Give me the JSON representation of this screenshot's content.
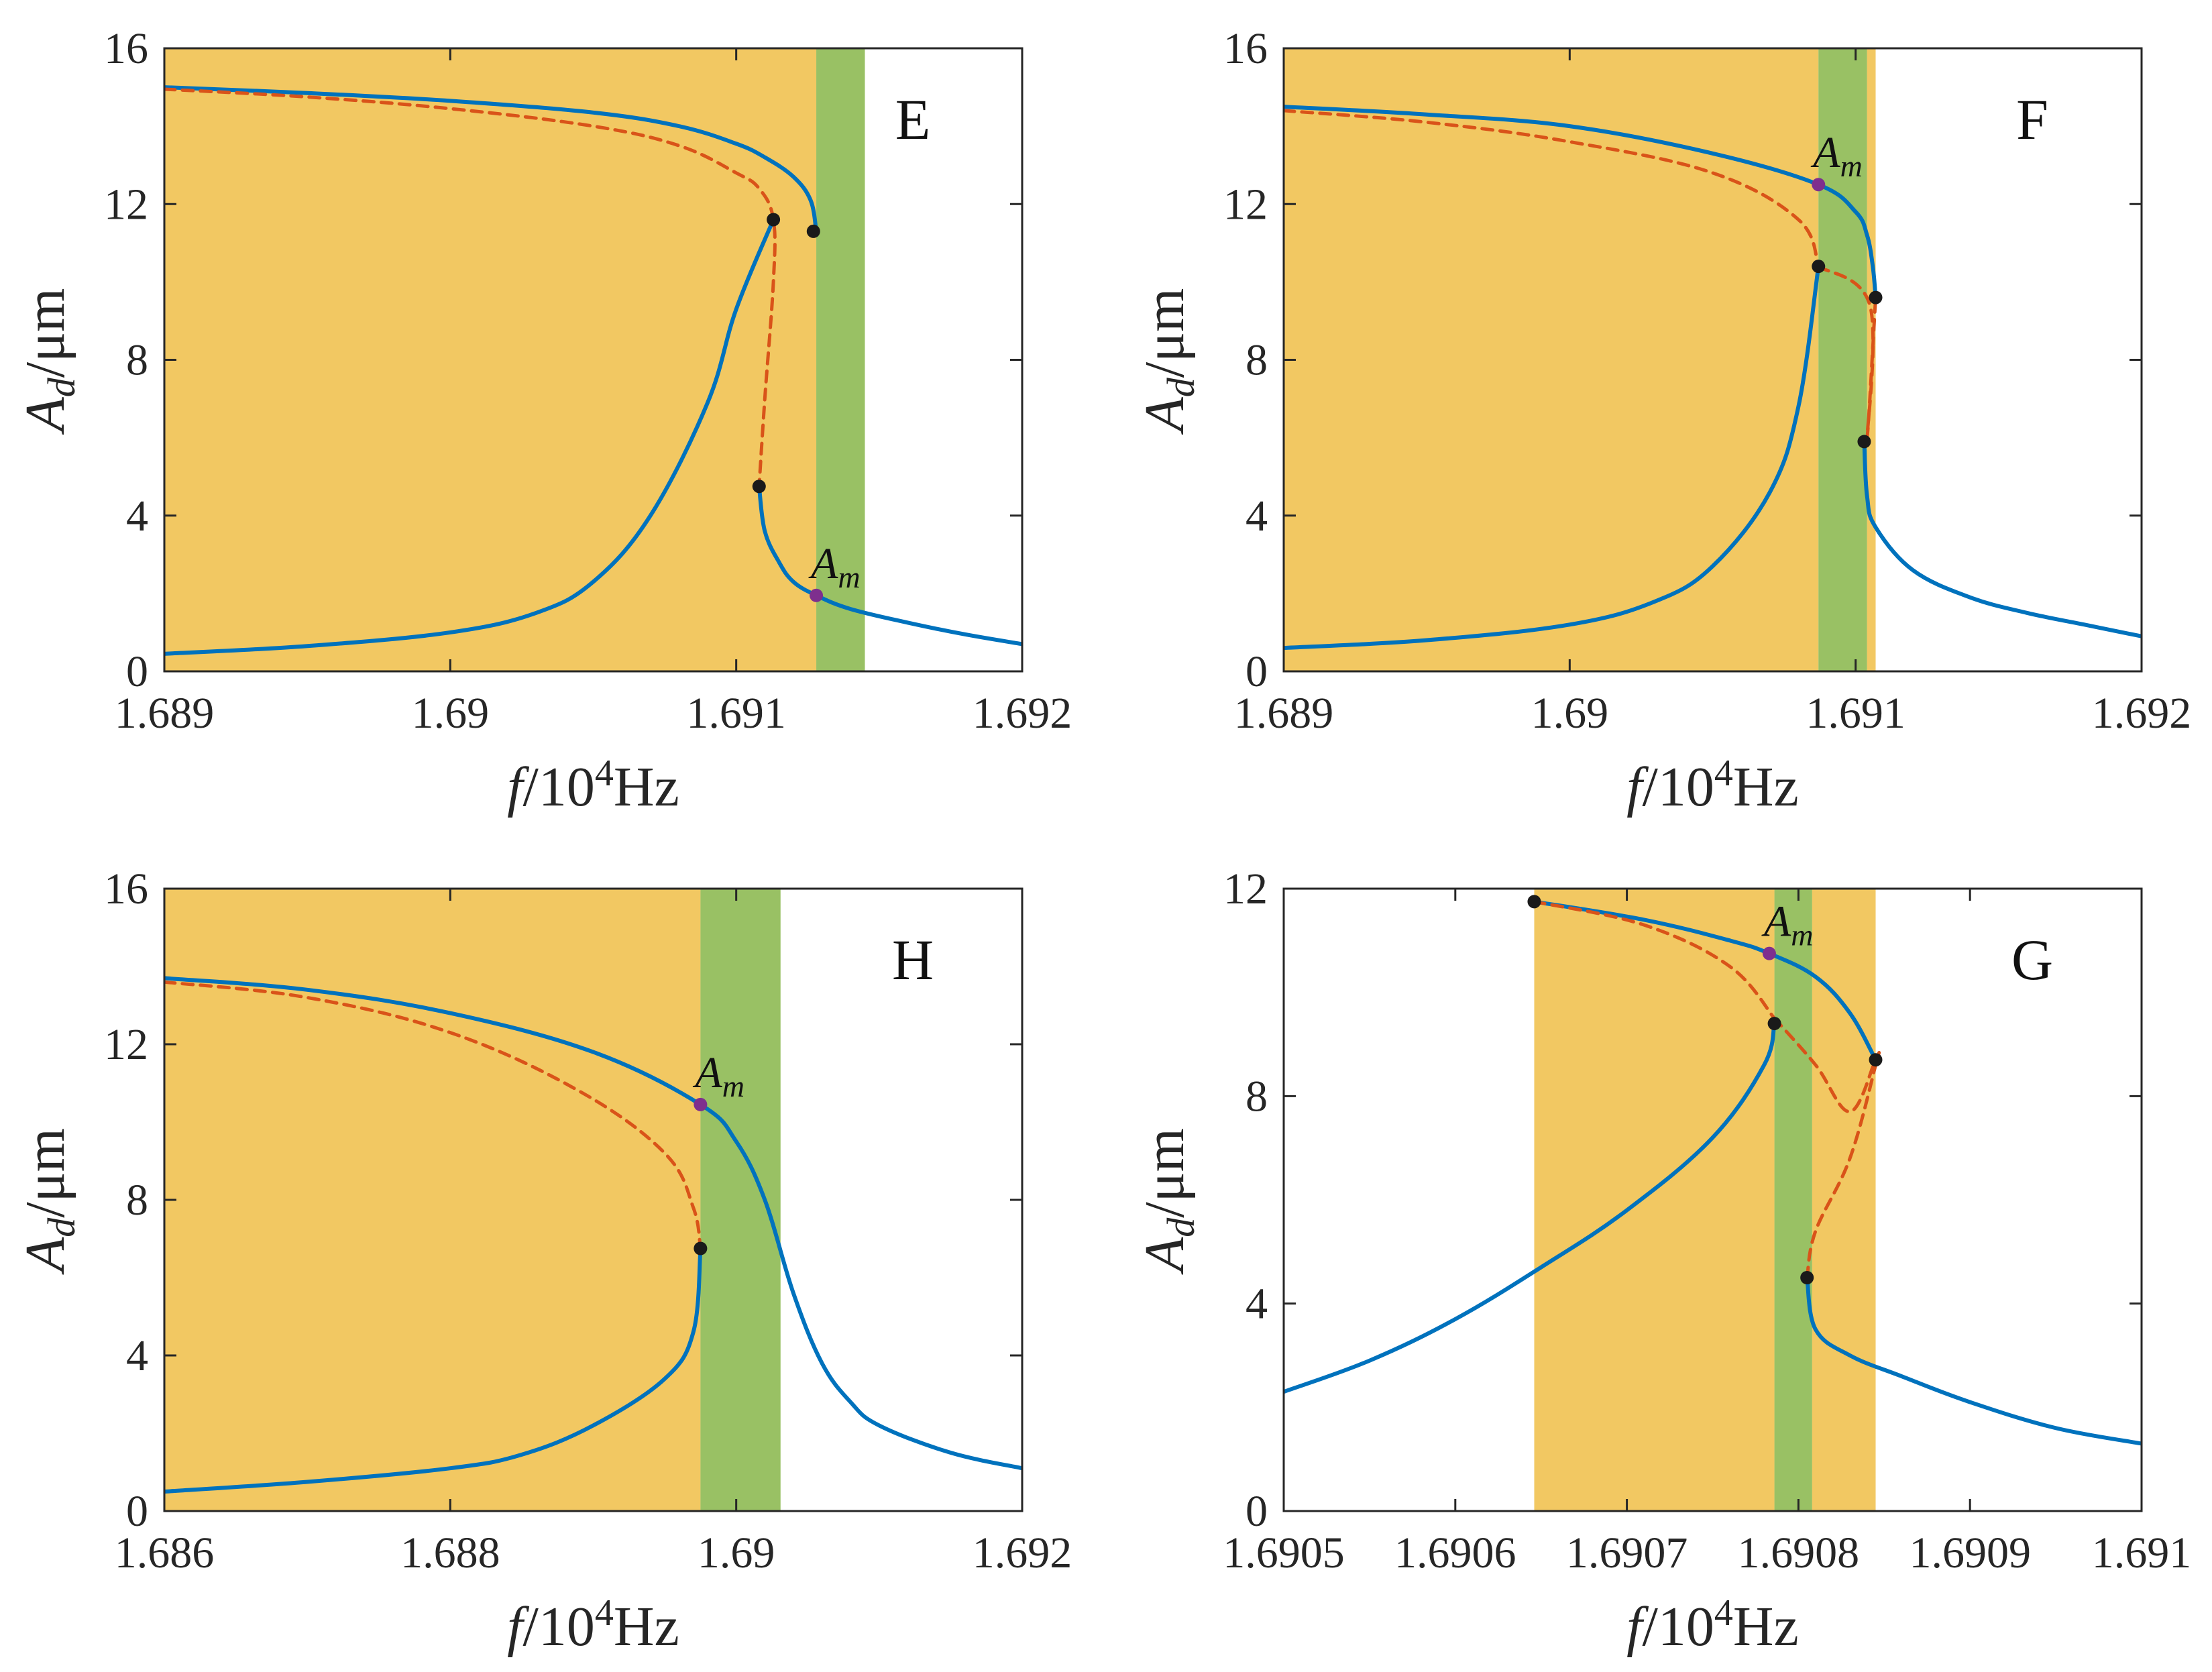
{
  "figure": {
    "axis_label_x_italic": "f",
    "axis_label_x_rest": "/10",
    "axis_label_x_exp": "4",
    "axis_label_x_unit": "Hz",
    "axis_label_y_main": "A",
    "axis_label_y_sub": "d",
    "axis_label_y_unit": "/μm",
    "marker_label_main": "A",
    "marker_label_sub": "m"
  },
  "colors": {
    "stable_curve": "#0072BD",
    "unstable_curve": "#D95319",
    "bifurcation_point": "#1a1a1a",
    "marker_point": "#7E2F8E",
    "orange_region": "#EDB120",
    "green_region": "#77AC30"
  },
  "chart_data": [
    {
      "type": "line",
      "panel_label": "E",
      "xlim": [
        1.689,
        1.692
      ],
      "ylim": [
        0,
        16
      ],
      "xticks": [
        1.689,
        1.69,
        1.691,
        1.692
      ],
      "xtick_labels": [
        "1.689",
        "1.69",
        "1.691",
        "1.692"
      ],
      "yticks": [
        0,
        4,
        8,
        12,
        16
      ],
      "ytick_labels": [
        "0",
        "4",
        "8",
        "12",
        "16"
      ],
      "regions": [
        {
          "name": "orange",
          "x": [
            1.689,
            1.69128
          ]
        },
        {
          "name": "green",
          "x": [
            1.69128,
            1.69145
          ]
        }
      ],
      "series": [
        {
          "name": "stable-upper",
          "style": "solid",
          "x": [
            1.689,
            1.6895,
            1.69,
            1.6905,
            1.6908,
            1.691,
            1.6911,
            1.6912,
            1.69126,
            1.69128
          ],
          "y": [
            15.0,
            14.85,
            14.65,
            14.35,
            14.0,
            13.55,
            13.2,
            12.7,
            12.1,
            11.3
          ]
        },
        {
          "name": "stable-lower",
          "style": "solid",
          "x": [
            1.689,
            1.6895,
            1.69,
            1.6903,
            1.6905,
            1.6907,
            1.6909,
            1.691,
            1.69113
          ],
          "y": [
            0.45,
            0.65,
            1.0,
            1.5,
            2.3,
            4.0,
            6.9,
            9.3,
            11.6
          ]
        },
        {
          "name": "stable-right",
          "style": "solid",
          "x": [
            1.69108,
            1.6911,
            1.69115,
            1.6912,
            1.69128,
            1.6914,
            1.6916,
            1.6918,
            1.692
          ],
          "y": [
            4.75,
            3.6,
            2.8,
            2.3,
            1.95,
            1.6,
            1.25,
            0.95,
            0.7
          ]
        },
        {
          "name": "unstable",
          "style": "dashed",
          "x": [
            1.689,
            1.6895,
            1.69,
            1.6905,
            1.6908,
            1.691,
            1.69108,
            1.69113,
            1.69113,
            1.6911,
            1.69108
          ],
          "y": [
            14.95,
            14.75,
            14.45,
            14.0,
            13.5,
            12.8,
            12.4,
            11.6,
            10.0,
            7.0,
            4.75
          ]
        }
      ],
      "points": [
        {
          "type": "bifurcation",
          "x": 1.69113,
          "y": 11.6
        },
        {
          "type": "bifurcation",
          "x": 1.69127,
          "y": 11.3
        },
        {
          "type": "bifurcation",
          "x": 1.69108,
          "y": 4.75
        },
        {
          "type": "marker",
          "x": 1.69128,
          "y": 1.95
        }
      ]
    },
    {
      "type": "line",
      "panel_label": "F",
      "xlim": [
        1.689,
        1.692
      ],
      "ylim": [
        0,
        16
      ],
      "xticks": [
        1.689,
        1.69,
        1.691,
        1.692
      ],
      "xtick_labels": [
        "1.689",
        "1.69",
        "1.691",
        "1.692"
      ],
      "yticks": [
        0,
        4,
        8,
        12,
        16
      ],
      "ytick_labels": [
        "0",
        "4",
        "8",
        "12",
        "16"
      ],
      "regions": [
        {
          "name": "orange",
          "x": [
            1.689,
            1.69087
          ]
        },
        {
          "name": "green",
          "x": [
            1.69087,
            1.69104
          ]
        },
        {
          "name": "orange",
          "x": [
            1.69104,
            1.69107
          ]
        }
      ],
      "series": [
        {
          "name": "stable-upper",
          "style": "solid",
          "x": [
            1.689,
            1.6895,
            1.69,
            1.6905,
            1.69087,
            1.691,
            1.69104,
            1.69106,
            1.69107
          ],
          "y": [
            14.5,
            14.3,
            14.0,
            13.3,
            12.5,
            11.8,
            11.2,
            10.4,
            9.6
          ]
        },
        {
          "name": "stable-lower",
          "style": "solid",
          "x": [
            1.689,
            1.6895,
            1.69,
            1.6903,
            1.6905,
            1.6907,
            1.6908,
            1.69087
          ],
          "y": [
            0.6,
            0.8,
            1.2,
            1.8,
            2.7,
            4.6,
            6.8,
            10.4
          ]
        },
        {
          "name": "stable-right",
          "style": "solid",
          "x": [
            1.69103,
            1.69104,
            1.69107,
            1.6912,
            1.6914,
            1.6916,
            1.6918,
            1.692
          ],
          "y": [
            5.9,
            4.5,
            3.7,
            2.6,
            1.9,
            1.5,
            1.2,
            0.9
          ]
        },
        {
          "name": "unstable",
          "style": "dashed",
          "x": [
            1.689,
            1.6895,
            1.69,
            1.6905,
            1.6908,
            1.69087,
            1.69087,
            1.69105,
            1.69104,
            1.69107
          ],
          "y": [
            14.4,
            14.1,
            13.6,
            12.8,
            11.6,
            10.4,
            10.4,
            9.4,
            6.0,
            9.6
          ]
        }
      ],
      "points": [
        {
          "type": "bifurcation",
          "x": 1.69087,
          "y": 10.4
        },
        {
          "type": "bifurcation",
          "x": 1.69107,
          "y": 9.6
        },
        {
          "type": "bifurcation",
          "x": 1.69103,
          "y": 5.9
        },
        {
          "type": "marker",
          "x": 1.69087,
          "y": 12.5
        }
      ]
    },
    {
      "type": "line",
      "panel_label": "H",
      "xlim": [
        1.686,
        1.692
      ],
      "ylim": [
        0,
        16
      ],
      "xticks": [
        1.686,
        1.688,
        1.69,
        1.692
      ],
      "xtick_labels": [
        "1.686",
        "1.688",
        "1.69",
        "1.692"
      ],
      "yticks": [
        0,
        4,
        8,
        12,
        16
      ],
      "ytick_labels": [
        "0",
        "4",
        "8",
        "12",
        "16"
      ],
      "regions": [
        {
          "name": "orange",
          "x": [
            1.686,
            1.68975
          ]
        },
        {
          "name": "green",
          "x": [
            1.68975,
            1.69031
          ]
        }
      ],
      "series": [
        {
          "name": "stable-upper",
          "style": "solid",
          "x": [
            1.686,
            1.687,
            1.688,
            1.689,
            1.68975,
            1.69,
            1.6902,
            1.6904,
            1.6906,
            1.6908,
            1.691,
            1.6915,
            1.692
          ],
          "y": [
            13.7,
            13.4,
            12.8,
            11.8,
            10.45,
            9.5,
            8.0,
            5.6,
            3.8,
            2.8,
            2.2,
            1.5,
            1.1
          ]
        },
        {
          "name": "stable-lower",
          "style": "solid",
          "x": [
            1.686,
            1.687,
            1.688,
            1.6885,
            1.689,
            1.6895,
            1.6897,
            1.68975
          ],
          "y": [
            0.5,
            0.75,
            1.1,
            1.45,
            2.2,
            3.4,
            4.6,
            6.7
          ]
        },
        {
          "name": "unstable",
          "style": "dashed",
          "x": [
            1.686,
            1.687,
            1.688,
            1.6889,
            1.6895,
            1.6897,
            1.68975
          ],
          "y": [
            13.6,
            13.2,
            12.3,
            10.8,
            9.2,
            7.8,
            6.75
          ]
        }
      ],
      "points": [
        {
          "type": "bifurcation",
          "x": 1.68975,
          "y": 6.75
        },
        {
          "type": "marker",
          "x": 1.68975,
          "y": 10.45
        }
      ]
    },
    {
      "type": "line",
      "panel_label": "G",
      "xlim": [
        1.6905,
        1.691
      ],
      "ylim": [
        0,
        12
      ],
      "xticks": [
        1.6905,
        1.6906,
        1.6907,
        1.6908,
        1.6909,
        1.691
      ],
      "xtick_labels": [
        "1.6905",
        "1.6906",
        "1.6907",
        "1.6908",
        "1.6909",
        "1.691"
      ],
      "yticks": [
        0,
        4,
        8,
        12
      ],
      "ytick_labels": [
        "0",
        "4",
        "8",
        "12"
      ],
      "regions": [
        {
          "name": "orange",
          "x": [
            1.690646,
            1.690786
          ]
        },
        {
          "name": "green",
          "x": [
            1.690786,
            1.690808
          ]
        },
        {
          "name": "orange",
          "x": [
            1.690808,
            1.690845
          ]
        }
      ],
      "series": [
        {
          "name": "stable-upper",
          "style": "solid",
          "x": [
            1.690646,
            1.69071,
            1.69076,
            1.690783,
            1.69081,
            1.69083,
            1.690845
          ],
          "y": [
            11.75,
            11.4,
            11.0,
            10.75,
            10.3,
            9.6,
            8.7
          ]
        },
        {
          "name": "stable-lower",
          "style": "solid",
          "x": [
            1.6905,
            1.69055,
            1.6906,
            1.69065,
            1.6907,
            1.69075,
            1.69078,
            1.690786
          ],
          "y": [
            2.3,
            2.9,
            3.7,
            4.7,
            5.8,
            7.2,
            8.6,
            9.4
          ]
        },
        {
          "name": "stable-right",
          "style": "solid",
          "x": [
            1.690805,
            1.69081,
            1.69083,
            1.69086,
            1.6909,
            1.69095,
            1.691
          ],
          "y": [
            4.5,
            3.5,
            3.0,
            2.6,
            2.1,
            1.6,
            1.3
          ]
        },
        {
          "name": "unstable",
          "style": "dashed",
          "x": [
            1.690646,
            1.69071,
            1.69076,
            1.690786,
            1.690786,
            1.69081,
            1.69083,
            1.690845,
            1.690845,
            1.69083,
            1.69081,
            1.690805
          ],
          "y": [
            11.75,
            11.3,
            10.5,
            9.5,
            9.5,
            8.6,
            7.7,
            8.7,
            8.6,
            6.8,
            5.4,
            4.5
          ]
        }
      ],
      "points": [
        {
          "type": "bifurcation",
          "x": 1.690646,
          "y": 11.75
        },
        {
          "type": "bifurcation",
          "x": 1.690786,
          "y": 9.4
        },
        {
          "type": "bifurcation",
          "x": 1.690845,
          "y": 8.7
        },
        {
          "type": "bifurcation",
          "x": 1.690805,
          "y": 4.5
        },
        {
          "type": "marker",
          "x": 1.690783,
          "y": 10.75
        }
      ]
    }
  ]
}
